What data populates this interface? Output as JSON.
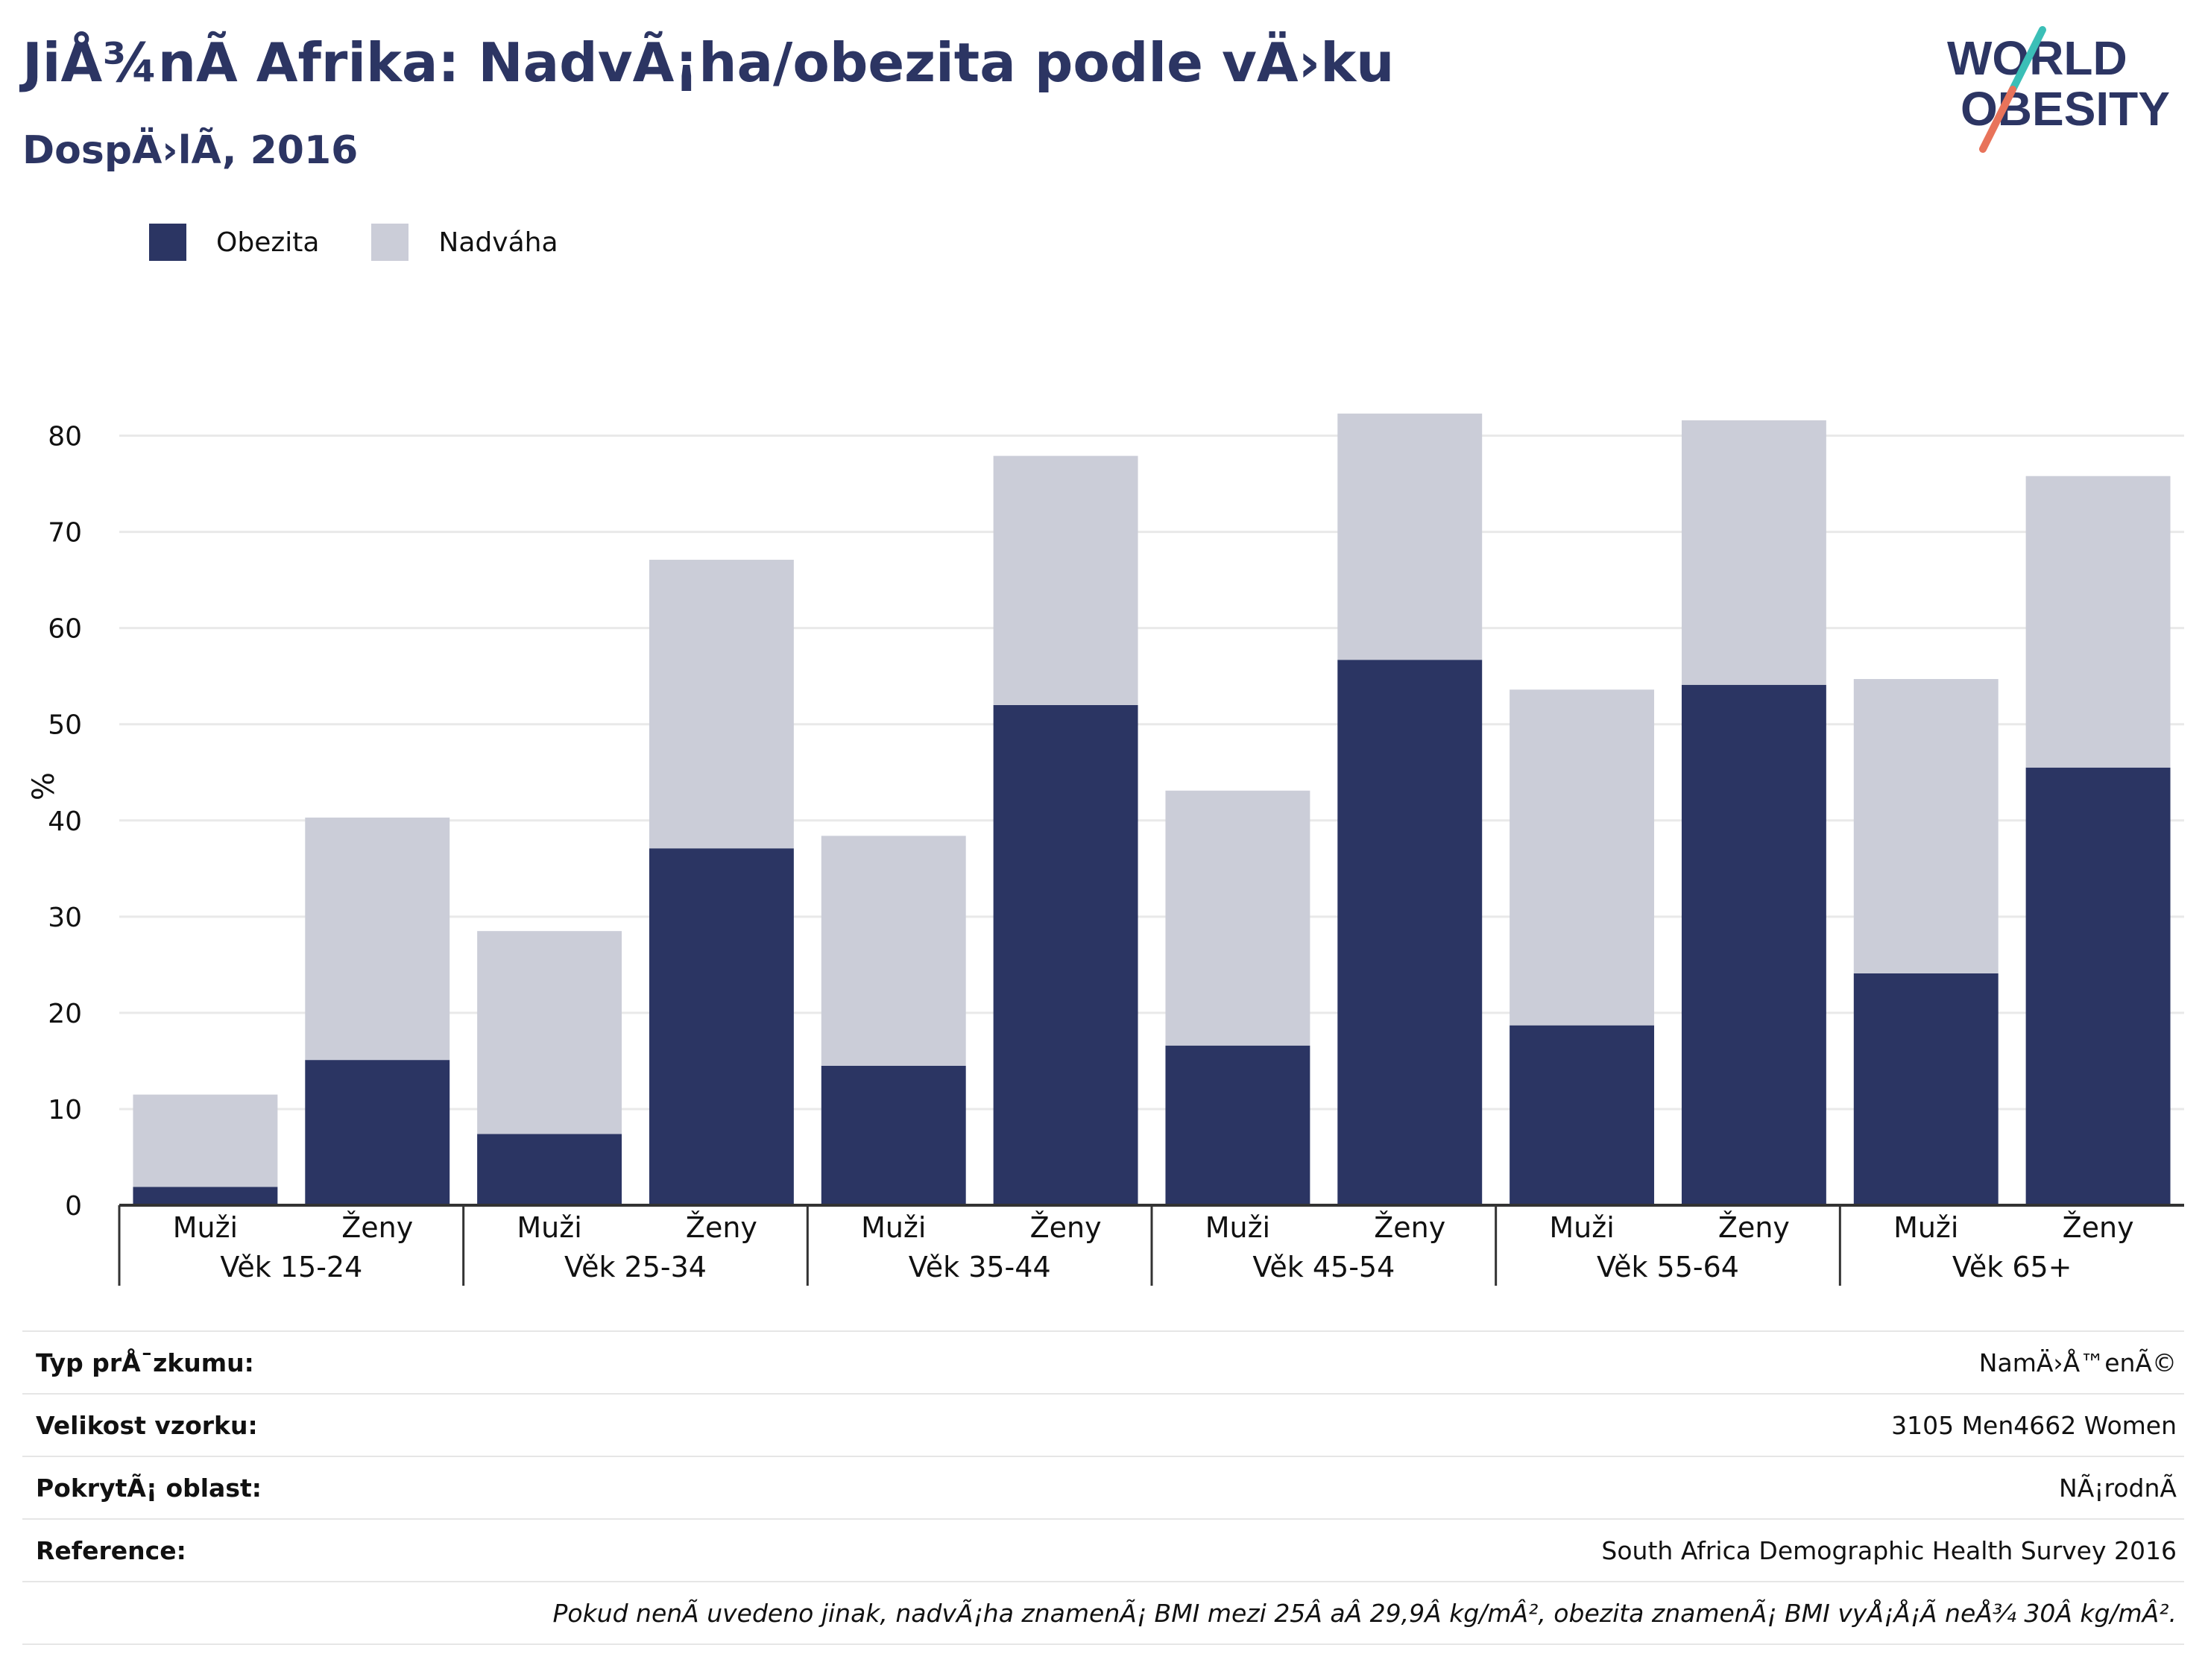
{
  "header": {
    "title": "JiÅ¾nÃ Afrika: NadvÃ¡ha/obezita podle vÄ›ku",
    "subtitle": "DospÄ›lÃ, 2016"
  },
  "logo": {
    "line1": "WORLD",
    "line2": "OBESITY",
    "colors": {
      "text": "#2c3563",
      "slash_teal": "#3bbfb7",
      "slash_coral": "#e8735a"
    }
  },
  "colors": {
    "obesity": "#2b3563",
    "overweight": "#cbcdd8",
    "grid": "#e9e9e9",
    "axis": "#333333"
  },
  "chart_data": {
    "type": "bar",
    "stacked": true,
    "ylabel": "%",
    "ylim": [
      0,
      85
    ],
    "yticks": [
      0,
      10,
      20,
      30,
      40,
      50,
      60,
      70,
      80
    ],
    "grid": true,
    "legend_position": "top-left",
    "groups": [
      "Věk 15-24",
      "Věk 25-34",
      "Věk 35-44",
      "Věk 45-54",
      "Věk 55-64",
      "Věk 65+"
    ],
    "subcategories": [
      "Muži",
      "Ženy"
    ],
    "categories": [
      "Muži",
      "Ženy",
      "Muži",
      "Ženy",
      "Muži",
      "Ženy",
      "Muži",
      "Ženy",
      "Muži",
      "Ženy",
      "Muži",
      "Ženy"
    ],
    "series": [
      {
        "name": "Obezita",
        "values": [
          1.9,
          15.1,
          7.4,
          37.1,
          14.5,
          52.0,
          16.6,
          56.7,
          18.7,
          54.1,
          24.1,
          45.5
        ]
      },
      {
        "name": "Nadváha",
        "values": [
          9.6,
          25.2,
          21.1,
          30.0,
          23.9,
          25.9,
          26.5,
          25.6,
          34.9,
          27.5,
          30.6,
          30.3
        ]
      }
    ]
  },
  "info_table": [
    {
      "label": "Typ prÅ¯zkumu:",
      "value": "NamÄ›Å™enÃ©"
    },
    {
      "label": "Velikost vzorku:",
      "value": "3105 Men4662 Women"
    },
    {
      "label": "PokrytÃ¡ oblast:",
      "value": "NÃ¡rodnÃ"
    },
    {
      "label": "Reference:",
      "value": "South Africa Demographic Health Survey 2016"
    }
  ],
  "footnote": "Pokud nenÃ uvedeno jinak, nadvÃ¡ha znamenÃ¡ BMI mezi 25Â aÂ 29,9Â kg/mÂ², obezita znamenÃ¡ BMI vyÅ¡Å¡Ã neÅ¾ 30Â kg/mÂ²."
}
